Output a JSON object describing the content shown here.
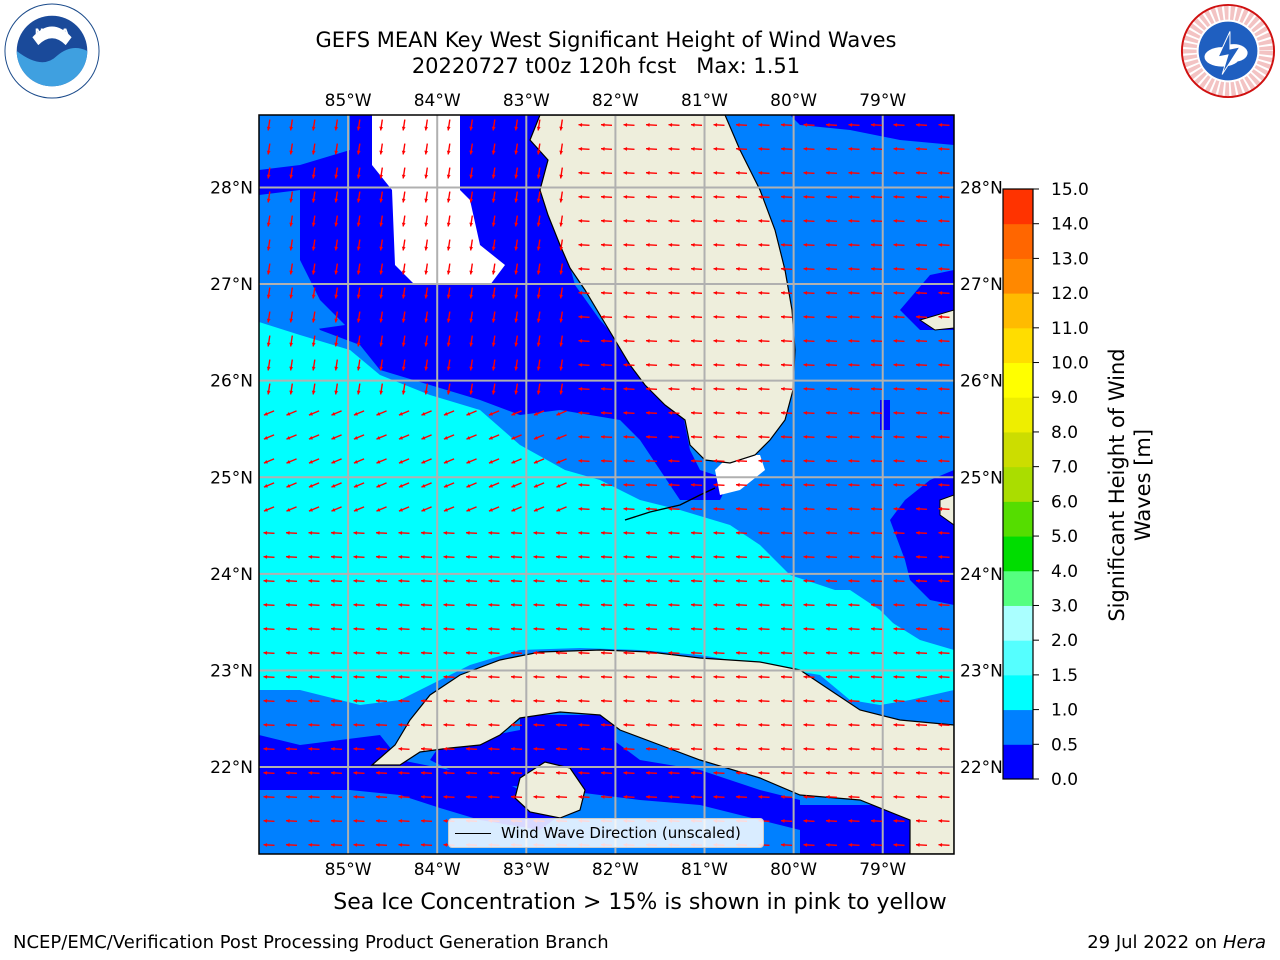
{
  "title": {
    "line1": "GEFS MEAN Key West Significant Height of Wind Waves",
    "line2": "20220727 t00z 120h fcst   Max: 1.51"
  },
  "map": {
    "lon_labels": [
      "85°W",
      "84°W",
      "83°W",
      "82°W",
      "81°W",
      "80°W",
      "79°W"
    ],
    "lat_labels": [
      "28°N",
      "27°N",
      "26°N",
      "25°N",
      "24°N",
      "23°N",
      "22°N"
    ],
    "lon_values": [
      -85,
      -84,
      -83,
      -82,
      -81,
      -80,
      -79
    ],
    "lat_values": [
      28,
      27,
      26,
      25,
      24,
      23,
      22
    ],
    "lon_range": [
      -86,
      -78.2
    ],
    "lat_range": [
      21.1,
      28.75
    ],
    "vector_color": "#ff0000",
    "land_color": "#eeeedc",
    "gridlines": true
  },
  "legend": {
    "label": "Wind Wave Direction (unscaled)",
    "placement": "lower-center"
  },
  "colorbar": {
    "label": "Significant Height of Wind Waves [m]",
    "ticks": [
      "0.0",
      "0.5",
      "1.0",
      "1.5",
      "2.0",
      "3.0",
      "4.0",
      "5.0",
      "6.0",
      "7.0",
      "8.0",
      "9.0",
      "10.0",
      "11.0",
      "12.0",
      "13.0",
      "14.0",
      "15.0"
    ],
    "colors": [
      "#0000ff",
      "#0080ff",
      "#00ffff",
      "#55ffff",
      "#aaffff",
      "#55ff80",
      "#00dd00",
      "#55dd00",
      "#aadd00",
      "#ccdd00",
      "#eeee00",
      "#ffff00",
      "#ffdd00",
      "#ffbb00",
      "#ff8800",
      "#ff6600",
      "#ff3300",
      "#ff0000"
    ]
  },
  "note": "Sea Ice Concentration > 15% is shown in pink to yellow",
  "footer": {
    "left": "NCEP/EMC/Verification Post Processing Product Generation Branch",
    "right_date": "29 Jul 2022 on ",
    "right_host": "Hera"
  }
}
